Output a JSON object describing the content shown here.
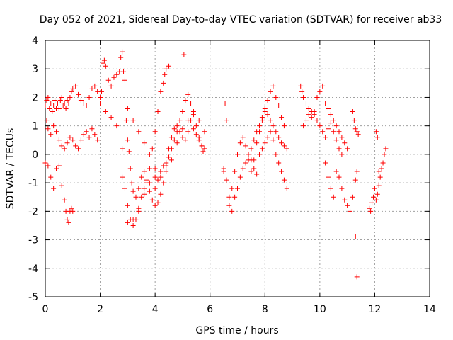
{
  "chart_data": {
    "type": "scatter",
    "title": "Day 052 of 2021, Sidereal Day-to-day VTEC variation (SDTVAR) for receiver ab33",
    "xlabel": "GPS time / hours",
    "ylabel": "SDTVAR / TECUs",
    "xlim": [
      0,
      14
    ],
    "ylim": [
      -5,
      4
    ],
    "xticks": [
      0,
      2,
      4,
      6,
      8,
      10,
      12,
      14
    ],
    "yticks": [
      -5,
      -4,
      -3,
      -2,
      -1,
      0,
      1,
      2,
      3,
      4
    ],
    "grid": true,
    "marker": "+",
    "series_color": "#ff0000",
    "series": [
      {
        "name": "SDTVAR",
        "x": [
          0.0,
          0.05,
          0.1,
          0.15,
          0.2,
          0.25,
          0.3,
          0.35,
          0.4,
          0.45,
          0.5,
          0.55,
          0.6,
          0.65,
          0.7,
          0.75,
          0.8,
          0.85,
          0.9,
          0.95,
          1.0,
          1.1,
          1.2,
          1.3,
          1.4,
          1.5,
          1.6,
          1.7,
          1.8,
          1.9,
          2.0,
          2.05,
          2.1,
          2.15,
          2.2,
          2.3,
          2.4,
          2.5,
          2.6,
          2.7,
          2.75,
          2.8,
          2.85,
          2.9,
          2.95,
          3.0,
          3.05,
          3.1,
          3.15,
          3.2,
          3.3,
          3.4,
          3.5,
          3.6,
          3.7,
          3.8,
          3.9,
          4.0,
          4.1,
          4.2,
          4.3,
          4.4,
          4.5,
          4.6,
          4.7,
          4.8,
          4.9,
          5.0,
          5.1,
          5.2,
          5.3,
          5.4,
          5.5,
          5.6,
          5.7,
          5.8,
          0.05,
          0.1,
          0.2,
          0.3,
          0.4,
          0.5,
          0.6,
          0.7,
          0.8,
          0.9,
          1.0,
          1.1,
          1.2,
          1.3,
          1.4,
          1.5,
          1.6,
          1.7,
          1.8,
          1.9,
          0.0,
          0.1,
          0.2,
          0.3,
          0.4,
          0.5,
          0.6,
          0.7,
          0.75,
          0.8,
          0.85,
          0.9,
          0.95,
          1.0,
          2.0,
          2.2,
          2.4,
          2.6,
          2.8,
          3.0,
          3.2,
          3.4,
          3.6,
          3.8,
          4.0,
          4.2,
          4.4,
          2.8,
          2.9,
          3.0,
          3.1,
          3.2,
          3.3,
          3.4,
          3.5,
          3.6,
          3.7,
          3.8,
          3.9,
          4.0,
          4.1,
          4.2,
          4.3,
          4.35,
          4.4,
          4.5,
          3.0,
          3.2,
          3.4,
          3.6,
          3.8,
          4.0,
          4.2,
          4.4,
          4.6,
          4.8,
          5.0,
          5.2,
          5.4,
          5.6,
          5.8,
          4.0,
          4.1,
          4.2,
          4.3,
          4.4,
          4.5,
          4.6,
          4.7,
          4.8,
          4.9,
          5.0,
          5.05,
          5.1,
          5.2,
          5.3,
          5.4,
          5.5,
          5.6,
          5.7,
          5.75,
          6.5,
          6.55,
          6.6,
          6.7,
          6.8,
          6.9,
          7.0,
          7.1,
          7.2,
          7.3,
          7.4,
          7.5,
          7.6,
          7.7,
          7.8,
          7.9,
          8.0,
          8.1,
          8.2,
          8.3,
          8.4,
          8.5,
          8.6,
          8.7,
          8.8,
          6.5,
          6.6,
          6.7,
          6.8,
          6.9,
          7.0,
          7.1,
          7.2,
          7.3,
          7.4,
          7.5,
          7.6,
          7.7,
          7.8,
          7.9,
          8.0,
          8.1,
          8.2,
          8.3,
          8.4,
          8.5,
          8.6,
          8.7,
          7.5,
          7.6,
          7.7,
          7.8,
          7.9,
          8.0,
          8.1,
          8.2,
          8.3,
          8.4,
          8.5,
          8.6,
          8.7,
          8.8,
          9.3,
          9.35,
          9.4,
          9.5,
          9.6,
          9.7,
          9.8,
          9.9,
          10.0,
          10.1,
          10.2,
          10.3,
          10.4,
          10.5,
          10.6,
          10.7,
          10.8,
          10.9,
          11.0,
          9.4,
          9.5,
          9.6,
          9.7,
          9.8,
          9.9,
          10.0,
          10.1,
          10.2,
          10.3,
          10.4,
          10.5,
          10.6,
          10.7,
          10.8,
          10.2,
          10.3,
          10.4,
          10.5,
          10.6,
          10.7,
          10.8,
          10.9,
          11.0,
          11.1,
          11.2,
          11.3,
          11.35,
          11.2,
          11.25,
          11.3,
          11.35,
          11.4,
          11.3,
          11.35,
          11.8,
          11.85,
          11.9,
          11.95,
          12.0,
          12.05,
          12.1,
          12.15,
          12.2,
          12.25,
          12.3,
          12.35,
          12.4,
          12.05,
          12.1,
          12.15
        ],
        "y": [
          1.7,
          1.9,
          2.0,
          1.6,
          1.8,
          1.5,
          1.7,
          1.9,
          1.6,
          1.8,
          1.6,
          1.9,
          2.0,
          1.7,
          1.8,
          1.6,
          1.9,
          1.8,
          2.0,
          2.2,
          2.3,
          2.4,
          2.1,
          1.9,
          1.8,
          1.7,
          2.0,
          2.3,
          2.4,
          2.2,
          2.0,
          2.2,
          3.2,
          3.3,
          3.1,
          2.6,
          2.4,
          2.7,
          2.8,
          2.9,
          3.4,
          3.6,
          2.9,
          2.6,
          1.2,
          0.5,
          0.1,
          -0.5,
          -1.0,
          -1.3,
          -1.5,
          -1.2,
          -0.8,
          -0.6,
          -0.9,
          -1.3,
          -1.6,
          -1.8,
          -1.7,
          -1.4,
          -1.0,
          -0.4,
          0.2,
          0.6,
          0.9,
          1.0,
          0.8,
          0.6,
          0.5,
          0.8,
          1.2,
          0.9,
          0.7,
          0.5,
          0.3,
          0.2,
          1.2,
          0.9,
          0.7,
          1.0,
          0.8,
          0.5,
          0.3,
          0.2,
          0.4,
          0.6,
          0.5,
          0.3,
          0.2,
          0.5,
          0.7,
          0.8,
          0.6,
          0.9,
          0.7,
          0.5,
          -0.3,
          -0.4,
          -0.8,
          -1.2,
          -0.5,
          -0.4,
          -1.1,
          -1.6,
          -2.0,
          -2.3,
          -2.4,
          -2.0,
          -1.9,
          -2.0,
          1.8,
          1.5,
          1.3,
          1.0,
          0.2,
          -2.4,
          -2.3,
          -2.0,
          -1.4,
          -1.0,
          -0.8,
          -0.6,
          -0.3,
          -0.8,
          -1.2,
          -1.8,
          -2.3,
          -2.5,
          -2.3,
          -1.9,
          -1.5,
          -1.2,
          -1.0,
          -0.5,
          0.2,
          0.8,
          1.5,
          2.2,
          2.5,
          2.8,
          3.0,
          3.1,
          1.6,
          1.2,
          0.8,
          0.4,
          0.0,
          -0.5,
          -0.8,
          -0.6,
          -0.2,
          0.4,
          0.9,
          1.2,
          1.5,
          1.2,
          0.8,
          -1.2,
          -0.9,
          -0.6,
          -0.4,
          -0.3,
          -0.1,
          0.2,
          0.5,
          0.8,
          1.2,
          1.5,
          3.5,
          1.9,
          2.1,
          1.8,
          1.4,
          1.0,
          0.6,
          0.3,
          0.1,
          -0.5,
          1.8,
          1.2,
          -1.8,
          -2.0,
          -1.5,
          -1.2,
          -0.8,
          -0.5,
          -0.3,
          0.0,
          0.2,
          0.5,
          0.8,
          1.0,
          1.3,
          1.5,
          1.4,
          1.2,
          1.0,
          0.8,
          0.6,
          0.4,
          0.3,
          0.2,
          -0.6,
          -0.9,
          -1.5,
          -1.2,
          -0.6,
          0.0,
          0.4,
          0.6,
          0.3,
          -0.2,
          -0.6,
          -0.2,
          0.4,
          0.8,
          1.2,
          1.6,
          1.9,
          2.2,
          2.4,
          2.0,
          1.7,
          1.3,
          1.0,
          -0.2,
          -0.5,
          -0.7,
          0.0,
          0.2,
          0.4,
          0.6,
          0.8,
          0.5,
          0.0,
          -0.3,
          -0.6,
          -0.9,
          -1.2,
          2.4,
          2.2,
          2.0,
          1.8,
          1.6,
          1.5,
          1.4,
          2.0,
          2.2,
          2.4,
          1.8,
          1.6,
          1.4,
          1.2,
          1.0,
          0.8,
          0.6,
          0.4,
          0.2,
          1.0,
          1.2,
          1.4,
          1.3,
          1.5,
          1.2,
          1.0,
          0.8,
          0.6,
          0.9,
          1.1,
          0.8,
          0.5,
          0.2,
          0.0,
          -0.3,
          -0.8,
          -1.2,
          -1.5,
          -0.6,
          -0.8,
          -1.2,
          -1.6,
          -1.8,
          -2.0,
          -1.5,
          -0.9,
          -0.6,
          1.5,
          1.2,
          0.9,
          0.8,
          0.7,
          -2.9,
          -4.3,
          -1.9,
          -2.0,
          -1.7,
          -1.5,
          -1.2,
          -1.6,
          -1.4,
          -1.1,
          -0.8,
          -0.5,
          -0.3,
          0.0,
          0.2,
          0.8,
          0.6,
          -0.6
        ]
      }
    ]
  }
}
